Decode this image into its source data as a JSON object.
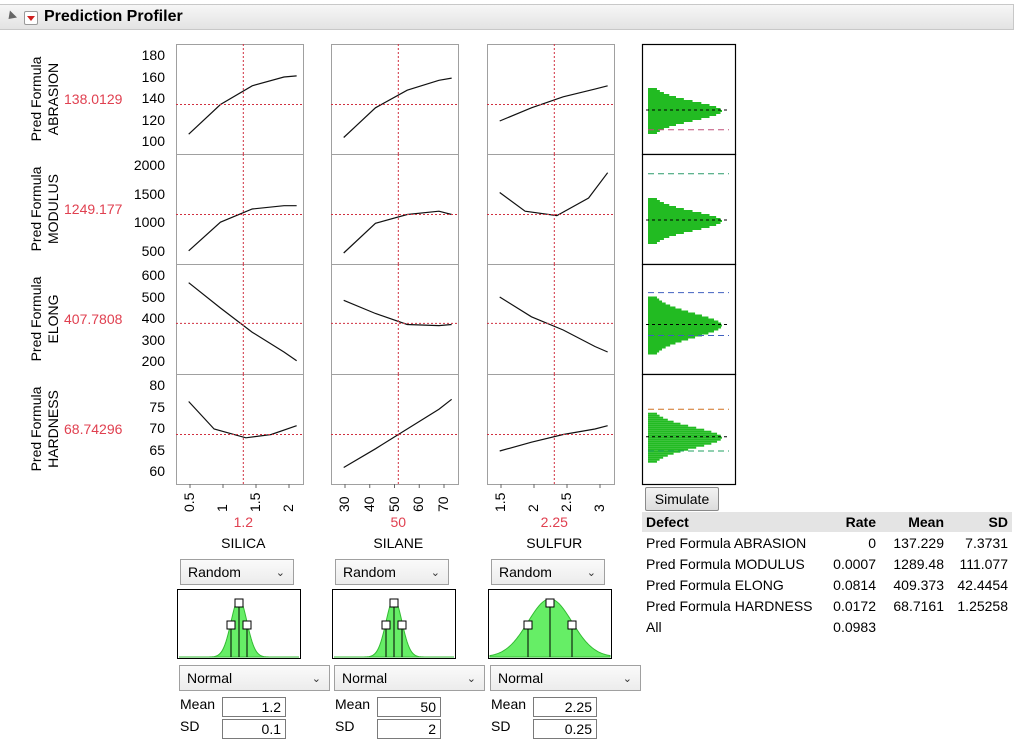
{
  "header": {
    "title": "Prediction Profiler"
  },
  "responses": [
    {
      "line1": "Pred Formula",
      "line2": "ABRASION",
      "value": "138.0129",
      "yticks": [
        "180",
        "160",
        "140",
        "120",
        "100"
      ]
    },
    {
      "line1": "Pred Formula",
      "line2": "MODULUS",
      "value": "1249.177",
      "yticks": [
        "2000",
        "1500",
        "1000",
        "500"
      ]
    },
    {
      "line1": "Pred Formula",
      "line2": "ELONG",
      "value": "407.7808",
      "yticks": [
        "600",
        "500",
        "400",
        "300",
        "200"
      ]
    },
    {
      "line1": "Pred Formula",
      "line2": "HARDNESS",
      "value": "68.74296",
      "yticks": [
        "80",
        "75",
        "70",
        "65",
        "60"
      ]
    }
  ],
  "factors": [
    {
      "name": "SILICA",
      "current": "1.2",
      "xticks": [
        "0.5",
        "1",
        "1.5",
        "2"
      ],
      "dist_type": "Random",
      "dist_shape": "Normal",
      "mean_label": "Mean",
      "mean": "1.2",
      "sd_label": "SD",
      "sd": "0.1"
    },
    {
      "name": "SILANE",
      "current": "50",
      "xticks": [
        "30",
        "40",
        "50",
        "60",
        "70"
      ],
      "dist_type": "Random",
      "dist_shape": "Normal",
      "mean_label": "Mean",
      "mean": "50",
      "sd_label": "SD",
      "sd": "2"
    },
    {
      "name": "SULFUR",
      "current": "2.25",
      "xticks": [
        "1.5",
        "2",
        "2.5",
        "3"
      ],
      "dist_type": "Random",
      "dist_shape": "Normal",
      "mean_label": "Mean",
      "mean": "2.25",
      "sd_label": "SD",
      "sd": "0.25"
    }
  ],
  "simulate_button": "Simulate",
  "defect_table": {
    "headers": [
      "Defect",
      "Rate",
      "Mean",
      "SD"
    ],
    "rows": [
      [
        "Pred Formula ABRASION",
        "0",
        "137.229",
        "7.3731"
      ],
      [
        "Pred Formula MODULUS",
        "0.0007",
        "1289.48",
        "111.077"
      ],
      [
        "Pred Formula ELONG",
        "0.0814",
        "409.373",
        "42.4454"
      ],
      [
        "Pred Formula HARDNESS",
        "0.0172",
        "68.7161",
        "1.25258"
      ],
      [
        "All",
        "0.0983",
        "",
        ""
      ]
    ]
  },
  "colors": {
    "crosshair": "#d03040",
    "hist_fill": "#22bb22",
    "dist_fill": "#66ee66",
    "value_text": "#e04050"
  }
}
